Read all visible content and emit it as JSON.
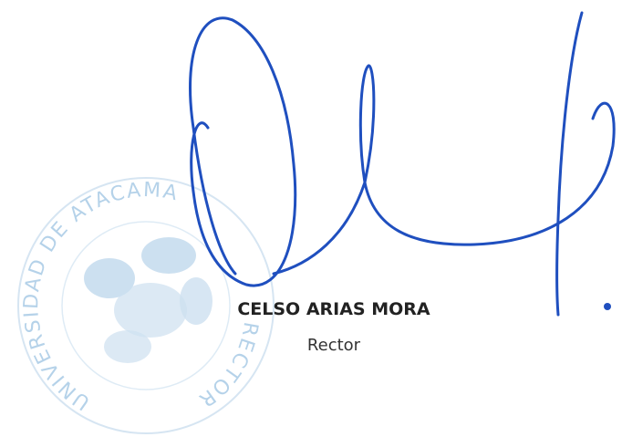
{
  "stamp": {
    "top_text": "UNIVERSIDAD DE ATACAMA",
    "bottom_text": "RECTOR"
  },
  "signatory": {
    "name": "CELSO ARIAS MORA",
    "title": "Rector"
  }
}
